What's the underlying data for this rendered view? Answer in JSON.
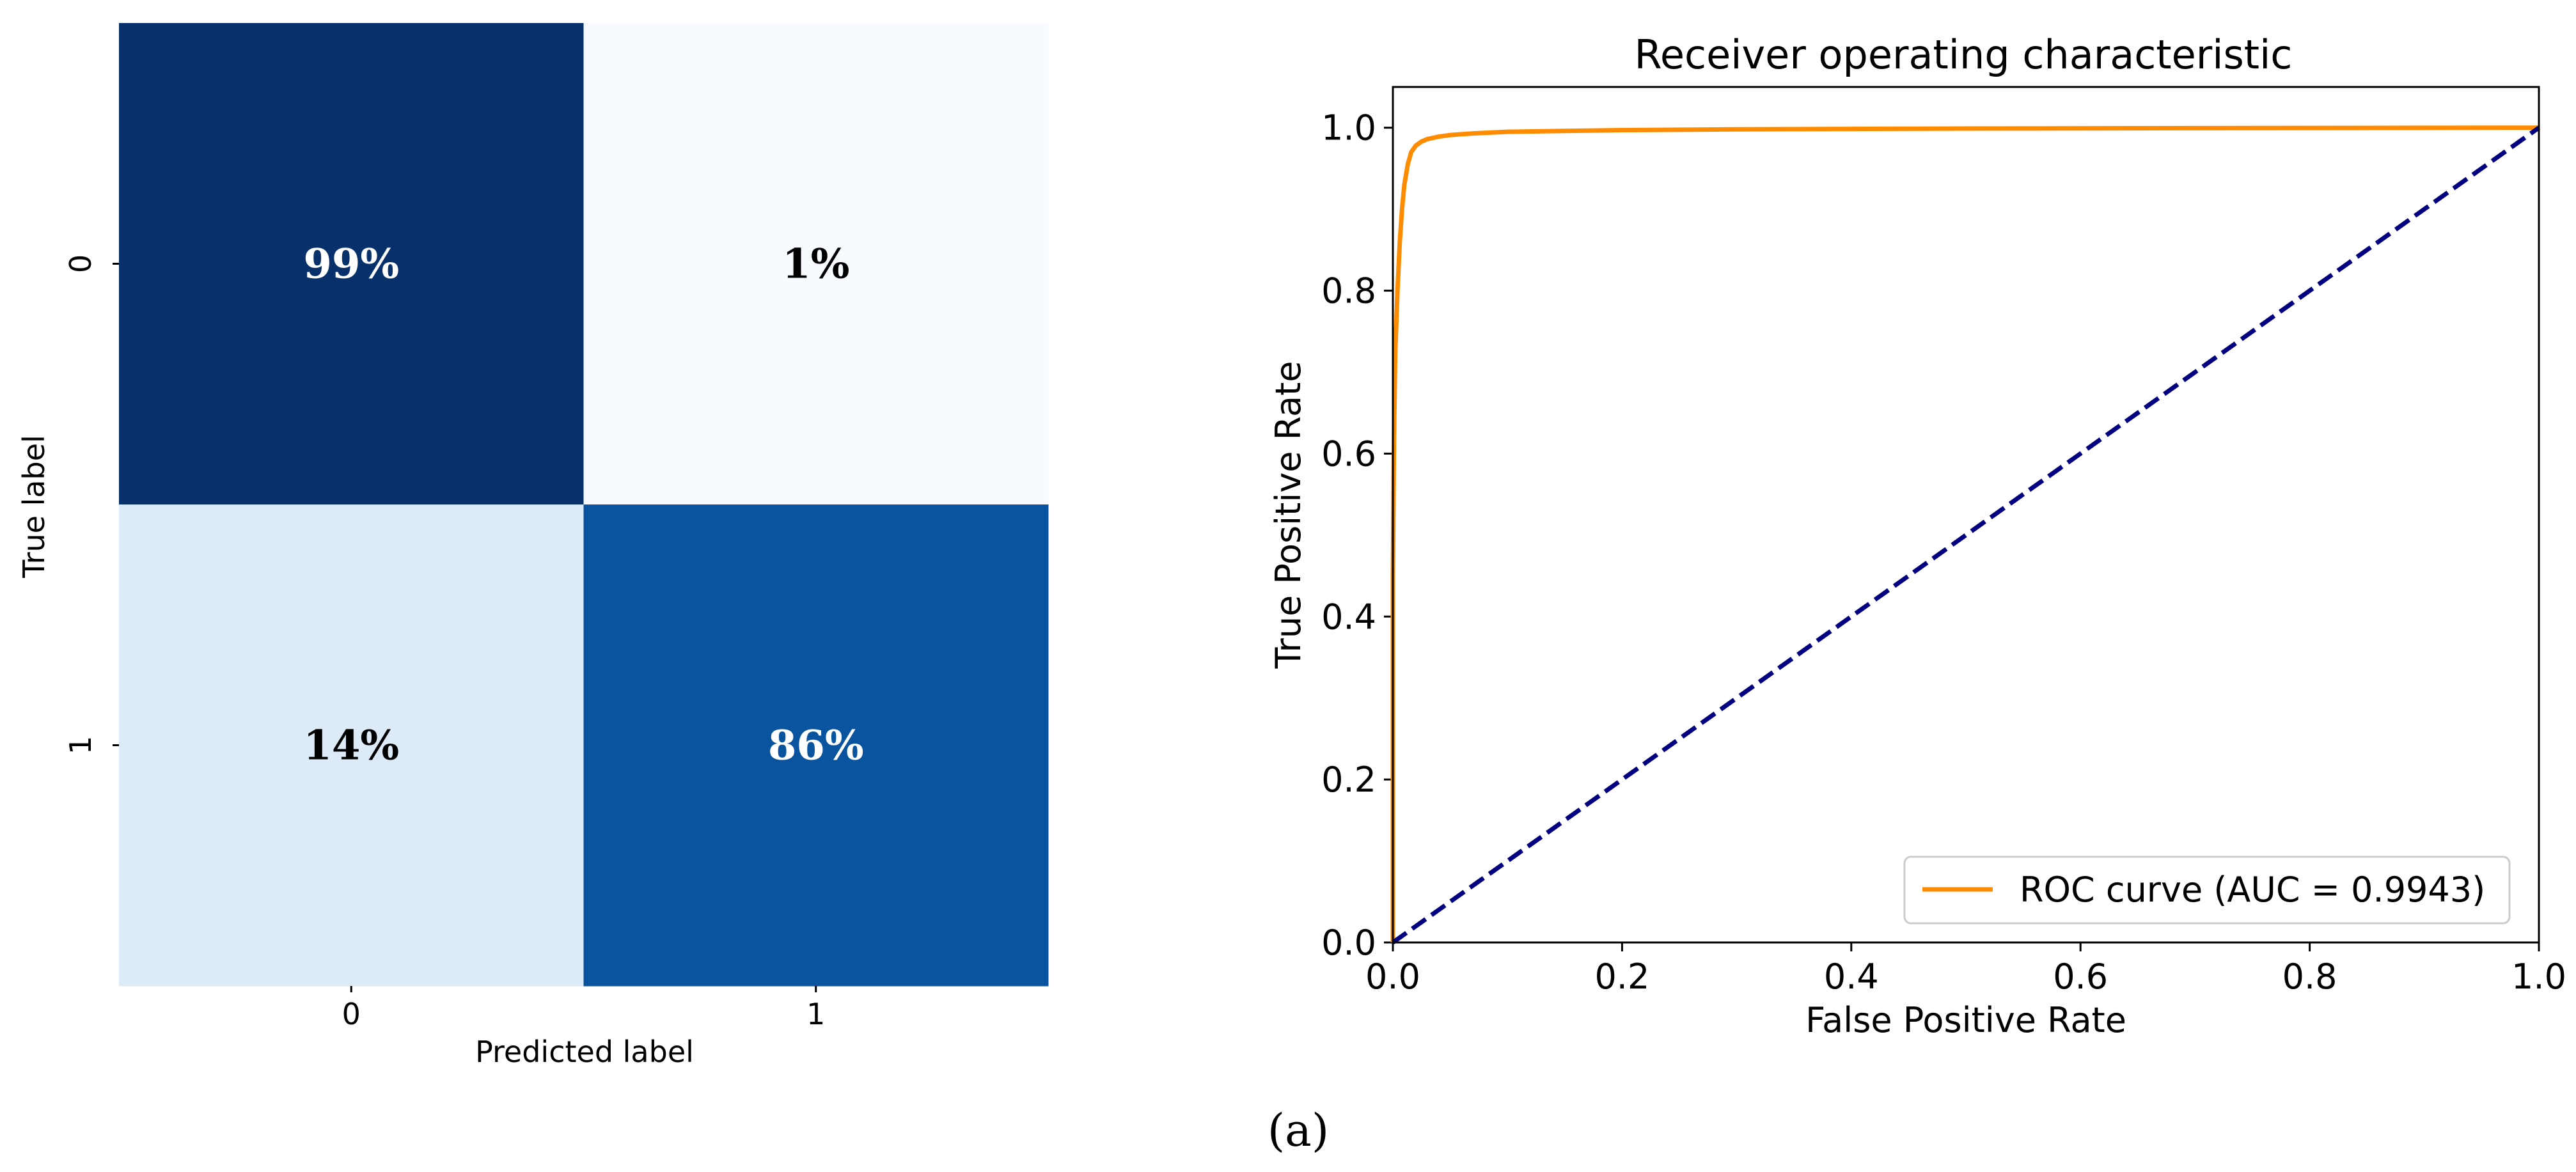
{
  "caption": "(a)",
  "chart_data": [
    {
      "type": "heatmap",
      "title": "",
      "xlabel": "Predicted label",
      "ylabel": "True label",
      "xticklabels": [
        "0",
        "1"
      ],
      "yticklabels": [
        "0",
        "1"
      ],
      "values": [
        [
          0.99,
          0.01
        ],
        [
          0.14,
          0.86
        ]
      ],
      "annotations": [
        [
          "99%",
          "1%"
        ],
        [
          "14%",
          "86%"
        ]
      ],
      "colormap": "Blues",
      "colorbar": false
    },
    {
      "type": "line",
      "title": "Receiver operating characteristic",
      "xlabel": "False Positive Rate",
      "ylabel": "True Positive Rate",
      "xlim": [
        0.0,
        1.0
      ],
      "ylim": [
        0.0,
        1.05
      ],
      "xticks": [
        0.0,
        0.2,
        0.4,
        0.6,
        0.8,
        1.0
      ],
      "yticks": [
        0.0,
        0.2,
        0.4,
        0.6,
        0.8,
        1.0
      ],
      "xticklabels": [
        "0.0",
        "0.2",
        "0.4",
        "0.6",
        "0.8",
        "1.0"
      ],
      "yticklabels": [
        "0.0",
        "0.2",
        "0.4",
        "0.6",
        "0.8",
        "1.0"
      ],
      "legend_position": "lower-right",
      "series": [
        {
          "name": "ROC curve (AUC = 0.9943)",
          "color": "#ff8c00",
          "style": "solid",
          "x": [
            0.0,
            0.0,
            0.001,
            0.002,
            0.004,
            0.006,
            0.008,
            0.01,
            0.013,
            0.016,
            0.02,
            0.025,
            0.03,
            0.04,
            0.05,
            0.07,
            0.1,
            0.15,
            0.2,
            0.3,
            0.5,
            0.7,
            1.0
          ],
          "y": [
            0.0,
            0.45,
            0.62,
            0.72,
            0.8,
            0.86,
            0.9,
            0.93,
            0.955,
            0.97,
            0.978,
            0.983,
            0.986,
            0.989,
            0.991,
            0.993,
            0.995,
            0.996,
            0.997,
            0.998,
            0.999,
            0.9995,
            1.0
          ]
        },
        {
          "name": "",
          "color": "#000080",
          "style": "dashed",
          "x": [
            0.0,
            1.0
          ],
          "y": [
            0.0,
            1.0
          ]
        }
      ]
    }
  ]
}
